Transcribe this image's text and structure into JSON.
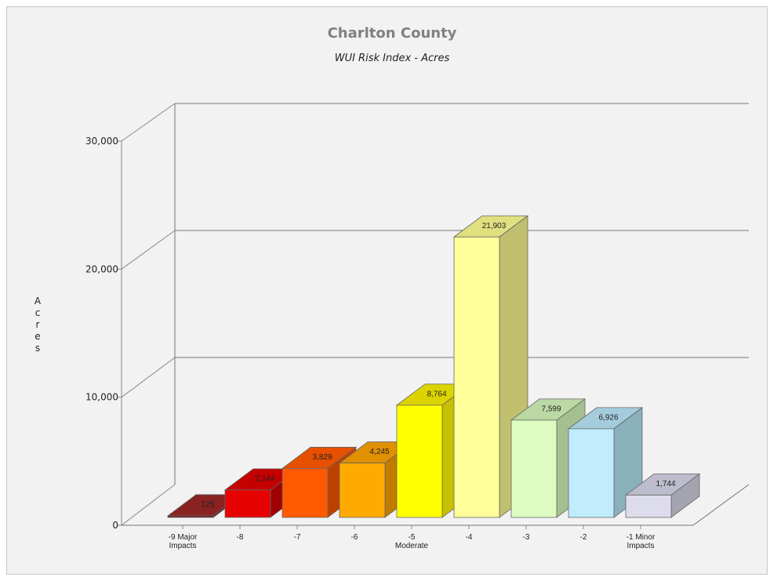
{
  "chart_data": {
    "type": "bar",
    "title": "Charlton County",
    "subtitle": "WUI Risk Index - Acres",
    "ylabel": "Acres",
    "xlabel": "",
    "ylim": [
      0,
      30000
    ],
    "yticks": [
      0,
      10000,
      20000,
      30000
    ],
    "ytick_labels": [
      "0",
      "10,000",
      "20,000",
      "30,000"
    ],
    "grid": true,
    "legend": "none",
    "categories": [
      [
        "-9 Major",
        "Impacts"
      ],
      [
        "-8"
      ],
      [
        "-7"
      ],
      [
        "-6"
      ],
      [
        "-5",
        "Moderate"
      ],
      [
        "-4"
      ],
      [
        "-3"
      ],
      [
        "-2"
      ],
      [
        "-1 Minor",
        "Impacts"
      ]
    ],
    "values": [
      125,
      2144,
      3829,
      4245,
      8764,
      21903,
      7599,
      6926,
      1744
    ],
    "value_labels": [
      "125",
      "2,144",
      "3,829",
      "4,245",
      "8,764",
      "21,903",
      "7,599",
      "6,926",
      "1,744"
    ],
    "colors": [
      {
        "front": "#6e1414",
        "side": "#4a0c0c",
        "top": "#8a2222"
      },
      {
        "front": "#e60000",
        "side": "#a00000",
        "top": "#c40000"
      },
      {
        "front": "#ff5a00",
        "side": "#c04000",
        "top": "#e65000"
      },
      {
        "front": "#ffaa00",
        "side": "#c07c00",
        "top": "#e09000"
      },
      {
        "front": "#ffff00",
        "side": "#c8c000",
        "top": "#dcd400"
      },
      {
        "front": "#ffff99",
        "side": "#c0c070",
        "top": "#e0e080"
      },
      {
        "front": "#ddfcc0",
        "side": "#a4c090",
        "top": "#bcd8a4"
      },
      {
        "front": "#c0ecfc",
        "side": "#8ab0bc",
        "top": "#a4ccdc"
      },
      {
        "front": "#dcdcec",
        "side": "#a4a4b0",
        "top": "#bcbccc"
      }
    ]
  }
}
